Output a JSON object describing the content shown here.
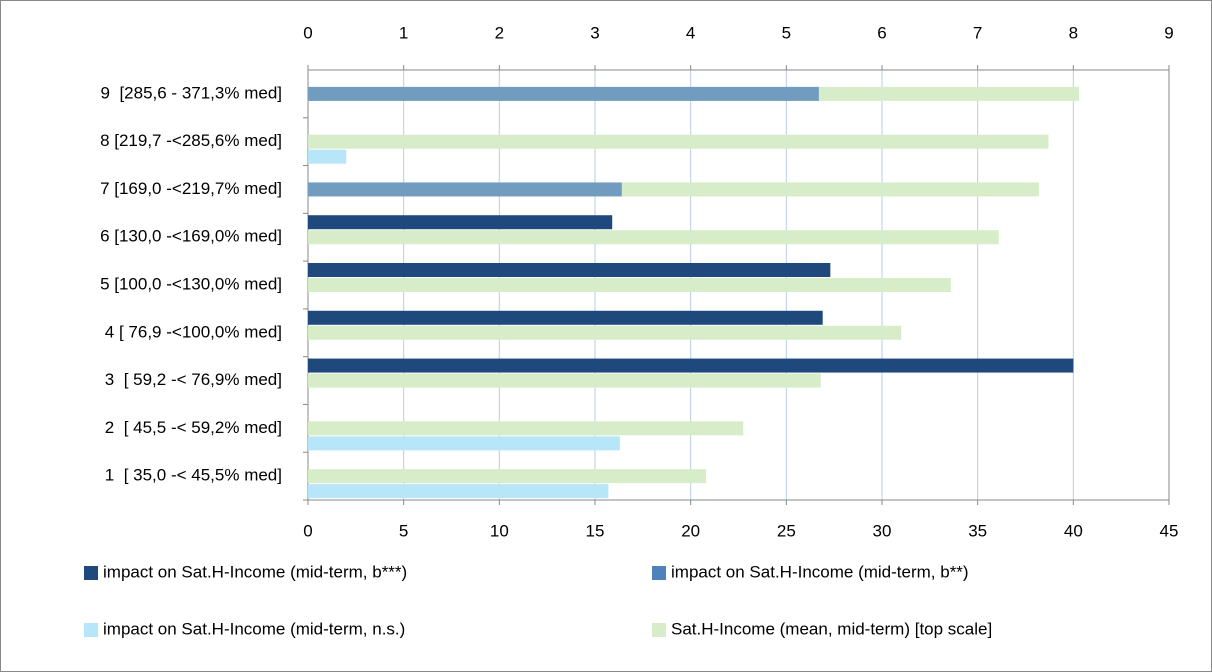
{
  "chart_data": {
    "type": "bar",
    "orientation": "horizontal",
    "categories": [
      "1  [ 35,0 -< 45,5% med]",
      "2  [ 45,5 -< 59,2% med]",
      "3  [ 59,2 -< 76,9% med]",
      "4 [ 76,9 -<100,0% med]",
      "5 [100,0 -<130,0% med]",
      "6 [130,0 -<169,0% med]",
      "7 [169,0 -<219,7% med]",
      "8 [219,7 -<285,6% med]",
      "9  [285,6 - 371,3% med]"
    ],
    "series": [
      {
        "name": "impact on Sat.H-Income (mid-term, b***)",
        "color": "#1f497d",
        "values": [
          null,
          null,
          40.0,
          26.9,
          27.3,
          15.9,
          null,
          null,
          null
        ]
      },
      {
        "name": "impact on Sat.H-Income (mid-term, b**)",
        "color": "#4f81bd",
        "values": [
          null,
          null,
          null,
          null,
          null,
          null,
          16.4,
          null,
          26.7
        ]
      },
      {
        "name": "impact on Sat.H-Income (mid-term, n.s.)",
        "color": "#b7e6f8",
        "values": [
          15.7,
          16.3,
          null,
          null,
          null,
          null,
          null,
          2.0,
          null
        ]
      },
      {
        "name": "Sat.H-Income (mean, mid-term) [top scale]",
        "color": "#d7ecc8",
        "axis": "x2",
        "values": [
          4.16,
          4.55,
          5.36,
          6.2,
          6.72,
          7.22,
          7.64,
          7.74,
          8.06
        ]
      }
    ],
    "xlim": [
      0,
      45
    ],
    "xticks": [
      0,
      5,
      10,
      15,
      20,
      25,
      30,
      35,
      40,
      45
    ],
    "x2lim": [
      0,
      9
    ],
    "x2ticks": [
      0,
      1,
      2,
      3,
      4,
      5,
      6,
      7,
      8,
      9
    ],
    "grid": true
  }
}
